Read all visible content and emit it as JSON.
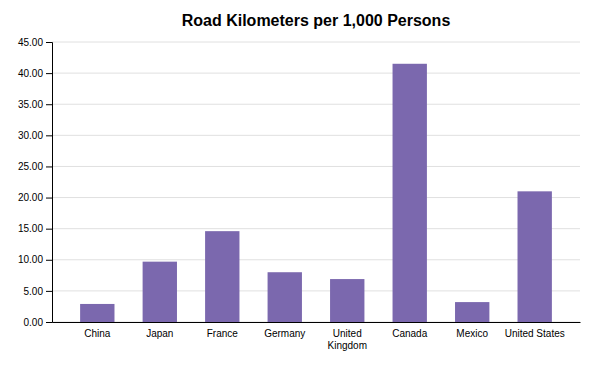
{
  "chart_data": {
    "type": "bar",
    "title": "Road Kilometers per 1,000 Persons",
    "categories": [
      "China",
      "Japan",
      "France",
      "Germany",
      "United\nKingdom",
      "Canada",
      "Mexico",
      "United States"
    ],
    "values": [
      2.9,
      9.7,
      14.6,
      8.0,
      6.9,
      41.5,
      3.2,
      21.0
    ],
    "color": "#7B68AE",
    "ylim": [
      0,
      45
    ],
    "yticks": [
      {
        "value": 0.0,
        "label": "0.00"
      },
      {
        "value": 5.0,
        "label": "5.00"
      },
      {
        "value": 10.0,
        "label": "10.00"
      },
      {
        "value": 15.0,
        "label": "15.00"
      },
      {
        "value": 20.0,
        "label": "20.00"
      },
      {
        "value": 25.0,
        "label": "25.00"
      },
      {
        "value": 30.0,
        "label": "30.00"
      },
      {
        "value": 35.0,
        "label": "35.00"
      },
      {
        "value": 40.0,
        "label": "40.00"
      },
      {
        "value": 45.0,
        "label": "45.00"
      }
    ],
    "grid": true
  }
}
